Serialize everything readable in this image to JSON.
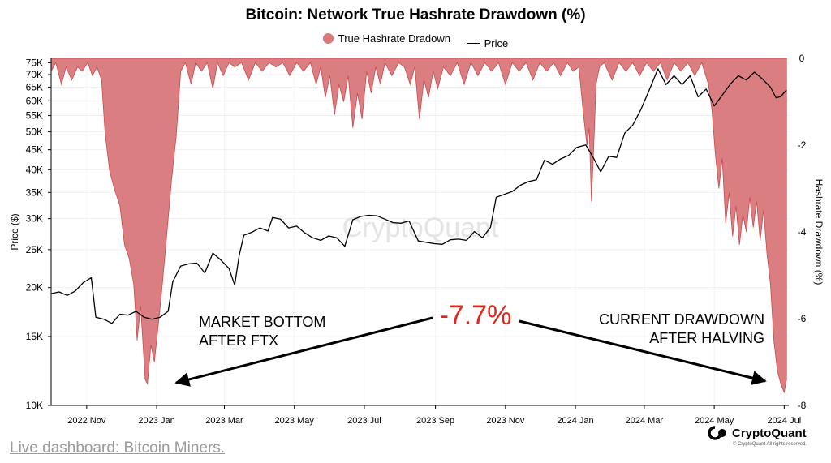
{
  "header": {
    "title": "Bitcoin: Network True Hashrate Drawdown (%)"
  },
  "legend": {
    "drawdown_label": "True Hashrate Dradown",
    "price_label": "Price"
  },
  "colors": {
    "drawdown_fill": "#d9777a",
    "drawdown_stroke": "#c94a4e",
    "price_line": "#000000",
    "annotation_red": "#e0251b"
  },
  "footer": {
    "link_text": "Live dashboard: Bitcoin Miners.",
    "brand": "CryptoQuant",
    "copyright": "© CryptoQuant All rights reserved."
  },
  "watermark": "CryptoQuant",
  "chart_data": {
    "type": "area",
    "title": "Bitcoin: Network True Hashrate Drawdown (%)",
    "xlabel": "",
    "ylabel_left": "Price ($)",
    "ylabel_right": "Hashrate Drawdown (%)",
    "y_left_scale": "log",
    "y_left_lim": [
      10000,
      77000
    ],
    "y_left_ticks": [
      "10K",
      "15K",
      "20K",
      "25K",
      "30K",
      "35K",
      "40K",
      "45K",
      "50K",
      "55K",
      "60K",
      "65K",
      "70K",
      "75K"
    ],
    "y_left_tick_values": [
      10000,
      15000,
      20000,
      25000,
      30000,
      35000,
      40000,
      45000,
      50000,
      55000,
      60000,
      65000,
      70000,
      75000
    ],
    "y_right_lim": [
      -8,
      0
    ],
    "y_right_ticks": [
      "0",
      "-2",
      "-4",
      "-6",
      "-8"
    ],
    "y_right_tick_values": [
      0,
      -2,
      -4,
      -6,
      -8
    ],
    "x_ticks": [
      "2022 Nov",
      "2023 Jan",
      "2023 Mar",
      "2023 May",
      "2023 Jul",
      "2023 Sep",
      "2023 Nov",
      "2024 Jan",
      "2024 Mar",
      "2024 May",
      "2024 Jul"
    ],
    "x_tick_dates": [
      "2022-11-01",
      "2023-01-01",
      "2023-03-01",
      "2023-05-01",
      "2023-07-01",
      "2023-09-01",
      "2023-11-01",
      "2024-01-01",
      "2024-03-01",
      "2024-05-01",
      "2024-07-01"
    ],
    "x_range": [
      "2022-10-01",
      "2024-07-05"
    ],
    "grid": true,
    "legend_position": "top-center",
    "series": [
      {
        "name": "True Hashrate Dradown",
        "axis": "right",
        "points": [
          [
            "2022-10-01",
            -0.3
          ],
          [
            "2022-10-05",
            -0.1
          ],
          [
            "2022-10-10",
            -0.6
          ],
          [
            "2022-10-14",
            -0.2
          ],
          [
            "2022-10-19",
            -0.5
          ],
          [
            "2022-10-24",
            -0.2
          ],
          [
            "2022-10-28",
            -0.3
          ],
          [
            "2022-11-02",
            -0.1
          ],
          [
            "2022-11-06",
            -0.4
          ],
          [
            "2022-11-10",
            -0.2
          ],
          [
            "2022-11-14",
            -0.5
          ],
          [
            "2022-11-17",
            -1.7
          ],
          [
            "2022-11-21",
            -2.6
          ],
          [
            "2022-11-25",
            -3.0
          ],
          [
            "2022-11-30",
            -3.4
          ],
          [
            "2022-12-04",
            -4.3
          ],
          [
            "2022-12-08",
            -4.6
          ],
          [
            "2022-12-12",
            -5.2
          ],
          [
            "2022-12-15",
            -6.5
          ],
          [
            "2022-12-18",
            -5.7
          ],
          [
            "2022-12-22",
            -7.4
          ],
          [
            "2022-12-24",
            -7.5
          ],
          [
            "2022-12-27",
            -6.6
          ],
          [
            "2022-12-30",
            -7.0
          ],
          [
            "2023-01-03",
            -6.0
          ],
          [
            "2023-01-06",
            -5.2
          ],
          [
            "2023-01-10",
            -4.0
          ],
          [
            "2023-01-14",
            -2.8
          ],
          [
            "2023-01-18",
            -1.8
          ],
          [
            "2023-01-22",
            -0.3
          ],
          [
            "2023-01-26",
            -0.1
          ],
          [
            "2023-01-31",
            -0.6
          ],
          [
            "2023-02-04",
            -0.1
          ],
          [
            "2023-02-09",
            -0.3
          ],
          [
            "2023-02-14",
            -0.1
          ],
          [
            "2023-02-19",
            -0.7
          ],
          [
            "2023-02-23",
            -0.1
          ],
          [
            "2023-02-28",
            -0.4
          ],
          [
            "2023-03-05",
            -0.1
          ],
          [
            "2023-03-10",
            -0.2
          ],
          [
            "2023-03-16",
            -0.1
          ],
          [
            "2023-03-22",
            -0.5
          ],
          [
            "2023-03-28",
            -0.1
          ],
          [
            "2023-04-03",
            -0.3
          ],
          [
            "2023-04-09",
            -0.1
          ],
          [
            "2023-04-15",
            -0.2
          ],
          [
            "2023-04-21",
            -0.1
          ],
          [
            "2023-04-27",
            -0.4
          ],
          [
            "2023-05-03",
            -0.1
          ],
          [
            "2023-05-09",
            -0.3
          ],
          [
            "2023-05-15",
            -0.1
          ],
          [
            "2023-05-20",
            -0.6
          ],
          [
            "2023-05-24",
            -0.2
          ],
          [
            "2023-05-28",
            -0.9
          ],
          [
            "2023-06-01",
            -0.4
          ],
          [
            "2023-06-05",
            -1.3
          ],
          [
            "2023-06-09",
            -0.6
          ],
          [
            "2023-06-13",
            -1.0
          ],
          [
            "2023-06-17",
            -0.4
          ],
          [
            "2023-06-21",
            -1.6
          ],
          [
            "2023-06-25",
            -0.8
          ],
          [
            "2023-06-29",
            -1.4
          ],
          [
            "2023-07-03",
            -0.3
          ],
          [
            "2023-07-07",
            -0.8
          ],
          [
            "2023-07-11",
            -0.2
          ],
          [
            "2023-07-15",
            -0.6
          ],
          [
            "2023-07-19",
            -0.1
          ],
          [
            "2023-07-25",
            -0.4
          ],
          [
            "2023-07-31",
            -0.1
          ],
          [
            "2023-08-05",
            -0.2
          ],
          [
            "2023-08-10",
            -0.6
          ],
          [
            "2023-08-14",
            -0.2
          ],
          [
            "2023-08-18",
            -1.4
          ],
          [
            "2023-08-22",
            -0.5
          ],
          [
            "2023-08-26",
            -0.9
          ],
          [
            "2023-08-30",
            -0.3
          ],
          [
            "2023-09-03",
            -0.7
          ],
          [
            "2023-09-08",
            -0.2
          ],
          [
            "2023-09-14",
            -0.4
          ],
          [
            "2023-09-20",
            -0.1
          ],
          [
            "2023-09-26",
            -0.6
          ],
          [
            "2023-10-02",
            -0.1
          ],
          [
            "2023-10-08",
            -0.4
          ],
          [
            "2023-10-14",
            -0.1
          ],
          [
            "2023-10-20",
            -0.3
          ],
          [
            "2023-10-26",
            -0.1
          ],
          [
            "2023-11-01",
            -0.6
          ],
          [
            "2023-11-07",
            -0.1
          ],
          [
            "2023-11-13",
            -0.3
          ],
          [
            "2023-11-19",
            -0.1
          ],
          [
            "2023-11-25",
            -0.5
          ],
          [
            "2023-12-01",
            -0.1
          ],
          [
            "2023-12-07",
            -0.3
          ],
          [
            "2023-12-13",
            -0.1
          ],
          [
            "2023-12-19",
            -0.4
          ],
          [
            "2023-12-25",
            -0.1
          ],
          [
            "2023-12-30",
            -0.3
          ],
          [
            "2024-01-04",
            -0.2
          ],
          [
            "2024-01-08",
            -1.3
          ],
          [
            "2024-01-11",
            -2.0
          ],
          [
            "2024-01-13",
            -1.6
          ],
          [
            "2024-01-15",
            -3.3
          ],
          [
            "2024-01-17",
            -2.0
          ],
          [
            "2024-01-19",
            -0.6
          ],
          [
            "2024-01-22",
            -0.2
          ],
          [
            "2024-01-26",
            -0.1
          ],
          [
            "2024-02-02",
            -0.5
          ],
          [
            "2024-02-08",
            -0.1
          ],
          [
            "2024-02-14",
            -0.3
          ],
          [
            "2024-02-20",
            -0.1
          ],
          [
            "2024-02-26",
            -0.4
          ],
          [
            "2024-03-03",
            -0.1
          ],
          [
            "2024-03-09",
            -0.3
          ],
          [
            "2024-03-15",
            -0.1
          ],
          [
            "2024-03-21",
            -0.5
          ],
          [
            "2024-03-27",
            -0.1
          ],
          [
            "2024-04-02",
            -0.3
          ],
          [
            "2024-04-08",
            -0.1
          ],
          [
            "2024-04-14",
            -0.4
          ],
          [
            "2024-04-20",
            -0.1
          ],
          [
            "2024-04-26",
            -0.6
          ],
          [
            "2024-04-29",
            -1.2
          ],
          [
            "2024-05-02",
            -2.2
          ],
          [
            "2024-05-05",
            -3.0
          ],
          [
            "2024-05-08",
            -2.3
          ],
          [
            "2024-05-11",
            -3.8
          ],
          [
            "2024-05-14",
            -3.1
          ],
          [
            "2024-05-17",
            -4.1
          ],
          [
            "2024-05-20",
            -3.4
          ],
          [
            "2024-05-23",
            -4.3
          ],
          [
            "2024-05-26",
            -3.6
          ],
          [
            "2024-05-29",
            -4.0
          ],
          [
            "2024-06-01",
            -3.2
          ],
          [
            "2024-06-04",
            -3.9
          ],
          [
            "2024-06-07",
            -3.3
          ],
          [
            "2024-06-10",
            -4.2
          ],
          [
            "2024-06-13",
            -3.5
          ],
          [
            "2024-06-16",
            -4.5
          ],
          [
            "2024-06-19",
            -5.2
          ],
          [
            "2024-06-22",
            -6.5
          ],
          [
            "2024-06-25",
            -7.2
          ],
          [
            "2024-06-28",
            -7.5
          ],
          [
            "2024-07-01",
            -7.7
          ],
          [
            "2024-07-03",
            -7.4
          ]
        ]
      },
      {
        "name": "Price",
        "axis": "left",
        "points": [
          [
            "2022-10-01",
            19300
          ],
          [
            "2022-10-08",
            19500
          ],
          [
            "2022-10-15",
            19100
          ],
          [
            "2022-10-22",
            19600
          ],
          [
            "2022-10-29",
            20600
          ],
          [
            "2022-11-05",
            21200
          ],
          [
            "2022-11-09",
            16800
          ],
          [
            "2022-11-16",
            16600
          ],
          [
            "2022-11-23",
            16200
          ],
          [
            "2022-11-30",
            17100
          ],
          [
            "2022-12-07",
            17000
          ],
          [
            "2022-12-14",
            17400
          ],
          [
            "2022-12-21",
            16800
          ],
          [
            "2022-12-28",
            16600
          ],
          [
            "2023-01-04",
            16800
          ],
          [
            "2023-01-11",
            17400
          ],
          [
            "2023-01-15",
            20700
          ],
          [
            "2023-01-22",
            22700
          ],
          [
            "2023-01-29",
            23000
          ],
          [
            "2023-02-05",
            23100
          ],
          [
            "2023-02-12",
            21800
          ],
          [
            "2023-02-19",
            24500
          ],
          [
            "2023-02-26",
            23500
          ],
          [
            "2023-03-05",
            22400
          ],
          [
            "2023-03-10",
            20300
          ],
          [
            "2023-03-14",
            24200
          ],
          [
            "2023-03-18",
            27200
          ],
          [
            "2023-03-25",
            27700
          ],
          [
            "2023-04-01",
            28400
          ],
          [
            "2023-04-08",
            27900
          ],
          [
            "2023-04-12",
            30200
          ],
          [
            "2023-04-19",
            29900
          ],
          [
            "2023-04-26",
            28400
          ],
          [
            "2023-05-03",
            28700
          ],
          [
            "2023-05-10",
            27600
          ],
          [
            "2023-05-17",
            26800
          ],
          [
            "2023-05-24",
            26400
          ],
          [
            "2023-05-31",
            27100
          ],
          [
            "2023-06-07",
            26800
          ],
          [
            "2023-06-14",
            25500
          ],
          [
            "2023-06-21",
            29800
          ],
          [
            "2023-06-28",
            30400
          ],
          [
            "2023-07-05",
            30600
          ],
          [
            "2023-07-12",
            30500
          ],
          [
            "2023-07-19",
            29900
          ],
          [
            "2023-07-26",
            29300
          ],
          [
            "2023-08-02",
            29200
          ],
          [
            "2023-08-09",
            29600
          ],
          [
            "2023-08-17",
            26300
          ],
          [
            "2023-08-24",
            26100
          ],
          [
            "2023-08-31",
            25900
          ],
          [
            "2023-09-07",
            25800
          ],
          [
            "2023-09-14",
            26500
          ],
          [
            "2023-09-21",
            26600
          ],
          [
            "2023-09-28",
            26400
          ],
          [
            "2023-10-05",
            27800
          ],
          [
            "2023-10-12",
            26800
          ],
          [
            "2023-10-19",
            28500
          ],
          [
            "2023-10-24",
            34000
          ],
          [
            "2023-10-31",
            34600
          ],
          [
            "2023-11-07",
            35200
          ],
          [
            "2023-11-14",
            36500
          ],
          [
            "2023-11-21",
            37300
          ],
          [
            "2023-11-28",
            37700
          ],
          [
            "2023-12-05",
            42300
          ],
          [
            "2023-12-12",
            41300
          ],
          [
            "2023-12-19",
            42600
          ],
          [
            "2023-12-26",
            43500
          ],
          [
            "2024-01-02",
            45600
          ],
          [
            "2024-01-10",
            46300
          ],
          [
            "2024-01-17",
            42700
          ],
          [
            "2024-01-23",
            39500
          ],
          [
            "2024-01-30",
            43300
          ],
          [
            "2024-02-06",
            43000
          ],
          [
            "2024-02-13",
            49600
          ],
          [
            "2024-02-20",
            52000
          ],
          [
            "2024-02-27",
            56900
          ],
          [
            "2024-03-05",
            63500
          ],
          [
            "2024-03-13",
            72400
          ],
          [
            "2024-03-20",
            66000
          ],
          [
            "2024-03-27",
            69500
          ],
          [
            "2024-04-03",
            66000
          ],
          [
            "2024-04-10",
            69500
          ],
          [
            "2024-04-17",
            61400
          ],
          [
            "2024-04-24",
            64300
          ],
          [
            "2024-05-01",
            58200
          ],
          [
            "2024-05-08",
            62000
          ],
          [
            "2024-05-15",
            66200
          ],
          [
            "2024-05-22",
            69500
          ],
          [
            "2024-05-29",
            67800
          ],
          [
            "2024-06-05",
            71000
          ],
          [
            "2024-06-12",
            68200
          ],
          [
            "2024-06-19",
            65000
          ],
          [
            "2024-06-24",
            61000
          ],
          [
            "2024-06-28",
            61500
          ],
          [
            "2024-07-03",
            64000
          ]
        ]
      }
    ],
    "annotations": [
      {
        "text": "MARKET BOTTOM\nAFTER FTX",
        "lines": [
          "MARKET BOTTOM",
          "AFTER FTX"
        ]
      },
      {
        "text": "-7.7%",
        "color": "#e0251b"
      },
      {
        "text": "CURRENT DRAWDOWN\nAFTER HALVING",
        "lines": [
          "CURRENT DRAWDOWN",
          "AFTER HALVING"
        ]
      }
    ]
  }
}
